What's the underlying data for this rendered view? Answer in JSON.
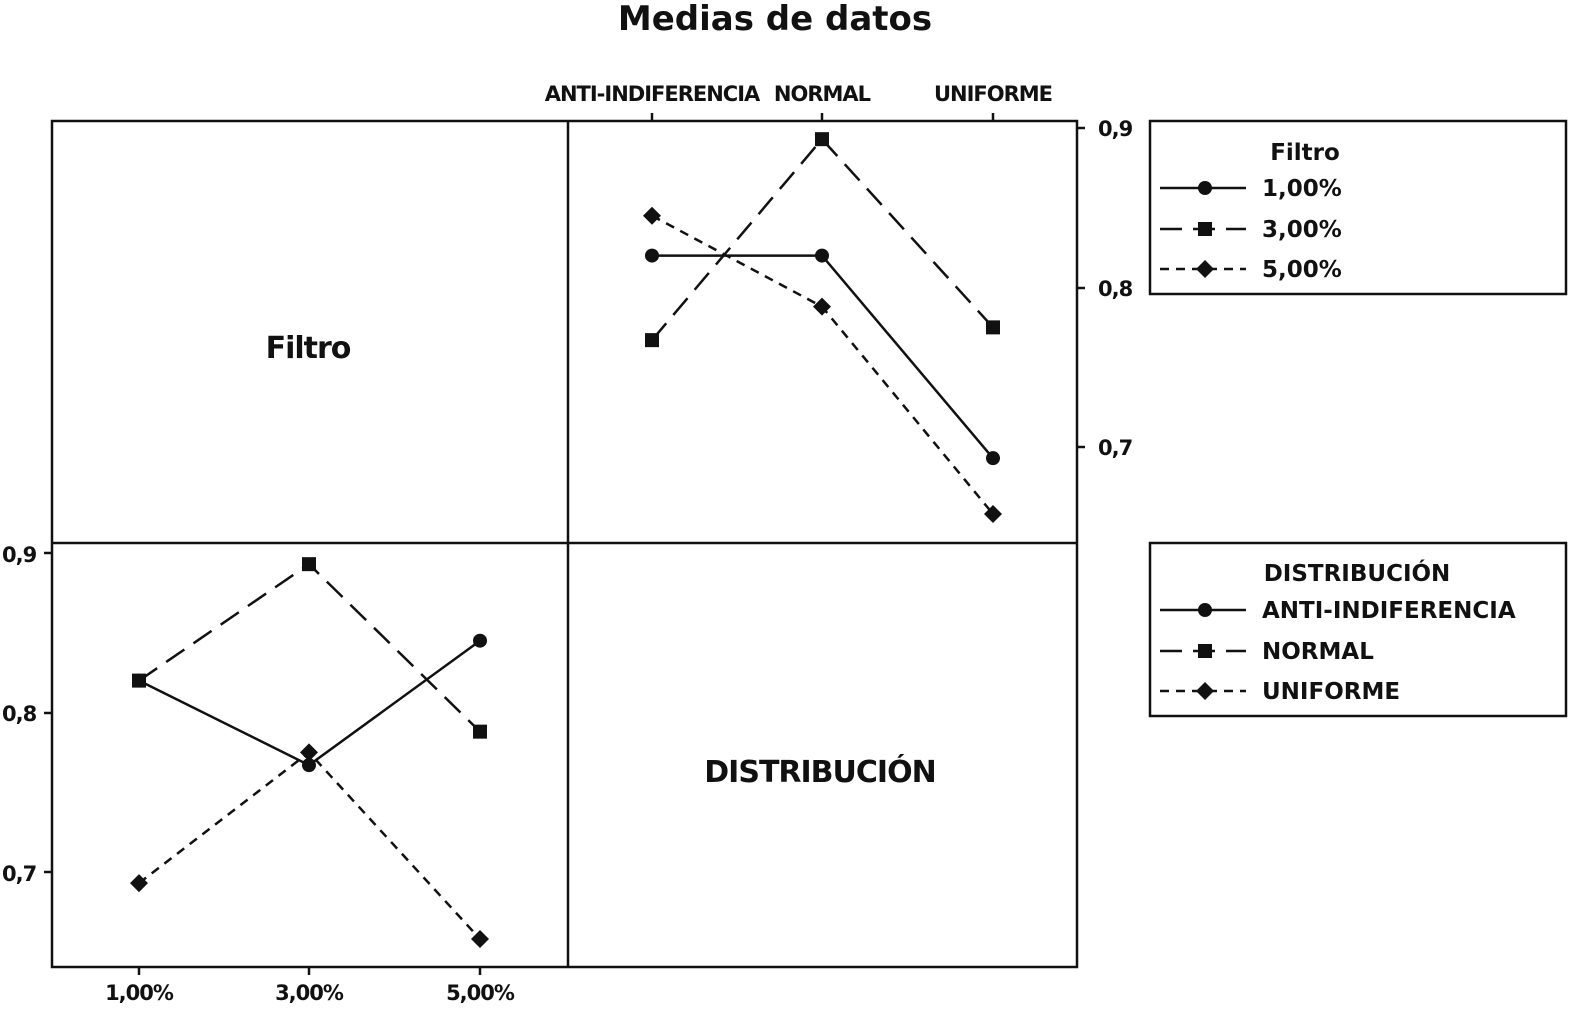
{
  "chart_data": {
    "type": "line",
    "title": "Medias de datos",
    "grid": false,
    "factors": {
      "filtro": {
        "name": "Filtro",
        "levels": [
          "1,00%",
          "3,00%",
          "5,00%"
        ]
      },
      "distribucion": {
        "name": "DISTRIBUCIÓN",
        "levels": [
          "ANTI-INDIFERENCIA",
          "NORMAL",
          "UNIFORME"
        ]
      }
    },
    "y_ticks": [
      "0,9",
      "0,8",
      "0,7"
    ],
    "y_tick_values": [
      0.9,
      0.8,
      0.7
    ],
    "ylim": [
      0.64,
      0.915
    ],
    "panels": [
      {
        "id": "top-right",
        "x_factor": "DISTRIBUCIÓN",
        "legend_factor": "Filtro",
        "categories": [
          "ANTI-INDIFERENCIA",
          "NORMAL",
          "UNIFORME"
        ],
        "series": [
          {
            "name": "1,00%",
            "marker": "circle",
            "dash": "solid",
            "values": [
              0.82,
              0.82,
              0.693
            ]
          },
          {
            "name": "3,00%",
            "marker": "square",
            "dash": "long-dash",
            "values": [
              0.767,
              0.893,
              0.775
            ]
          },
          {
            "name": "5,00%",
            "marker": "diamond",
            "dash": "short-dash",
            "values": [
              0.845,
              0.788,
              0.658
            ]
          }
        ]
      },
      {
        "id": "bottom-left",
        "x_factor": "Filtro",
        "legend_factor": "DISTRIBUCIÓN",
        "categories": [
          "1,00%",
          "3,00%",
          "5,00%"
        ],
        "series": [
          {
            "name": "ANTI-INDIFERENCIA",
            "marker": "circle",
            "dash": "solid",
            "values": [
              0.82,
              0.767,
              0.845
            ]
          },
          {
            "name": "NORMAL",
            "marker": "square",
            "dash": "long-dash",
            "values": [
              0.82,
              0.893,
              0.788
            ]
          },
          {
            "name": "UNIFORME",
            "marker": "diamond",
            "dash": "short-dash",
            "values": [
              0.693,
              0.775,
              0.658
            ]
          }
        ]
      }
    ],
    "legends": [
      {
        "title": "Filtro",
        "items": [
          "1,00%",
          "3,00%",
          "5,00%"
        ],
        "placement": "top-right"
      },
      {
        "title": "DISTRIBUCIÓN",
        "items": [
          "ANTI-INDIFERENCIA",
          "NORMAL",
          "UNIFORME"
        ],
        "placement": "right"
      }
    ],
    "diagonal_labels": [
      "Filtro",
      "DISTRIBUCIÓN"
    ]
  }
}
